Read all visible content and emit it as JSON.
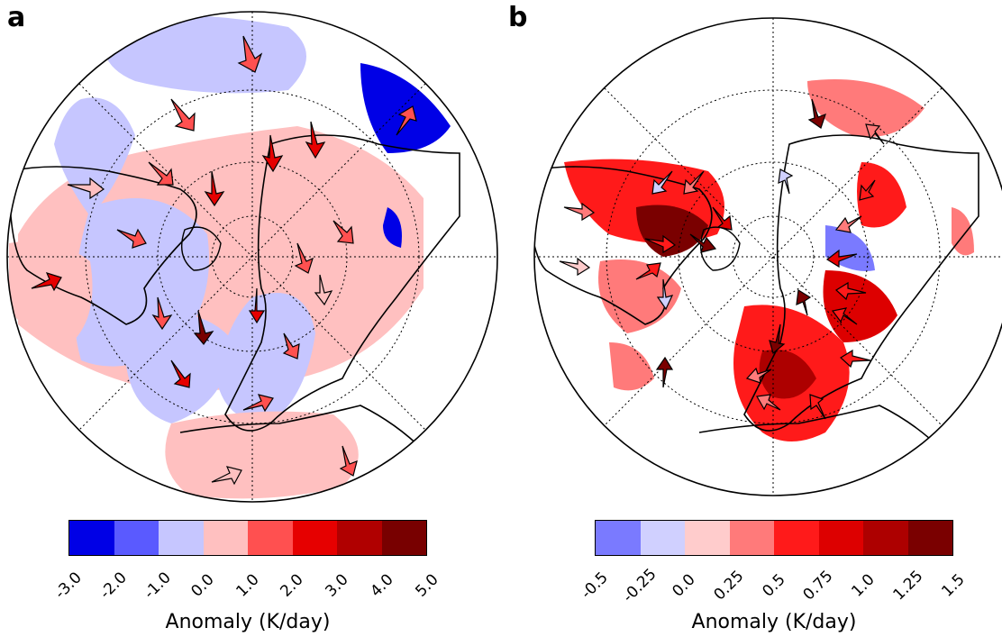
{
  "panels": [
    {
      "letter": "a",
      "colorbar": {
        "ticks": [
          "-3.0",
          "-2.0",
          "-1.0",
          "0.0",
          "1.0",
          "2.0",
          "3.0",
          "4.0",
          "5.0"
        ],
        "colors": [
          "#0000e6",
          "#5a5aff",
          "#c6c6ff",
          "#ffc0c0",
          "#ff5050",
          "#e60000",
          "#b00000",
          "#780000"
        ],
        "label": "Anomaly (K/day)"
      }
    },
    {
      "letter": "b",
      "colorbar": {
        "ticks": [
          "-0.5",
          "-0.25",
          "0.0",
          "0.25",
          "0.5",
          "0.75",
          "1.0",
          "1.25",
          "1.5"
        ],
        "colors": [
          "#7a7aff",
          "#d0d0ff",
          "#ffcccc",
          "#ff7a7a",
          "#ff1a1a",
          "#dd0000",
          "#ad0000",
          "#7a0000"
        ],
        "label": "Anomaly (K/day)"
      }
    }
  ]
}
